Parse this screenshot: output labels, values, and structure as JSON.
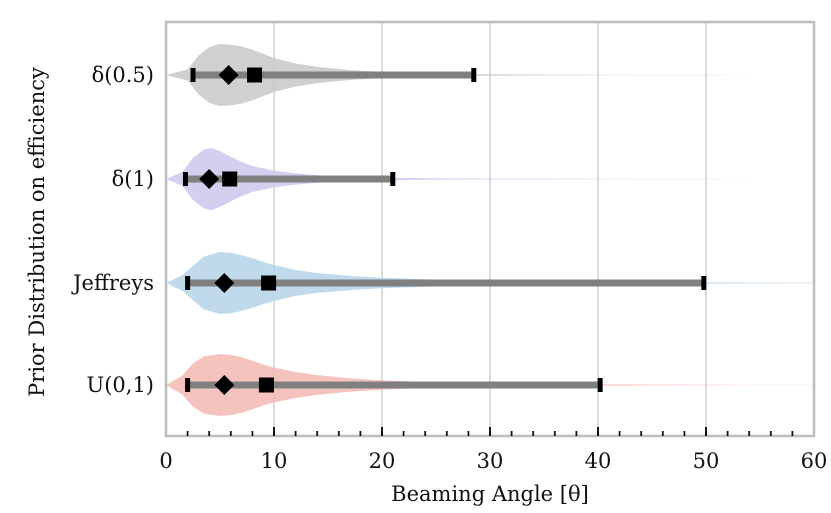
{
  "chart_data": {
    "type": "violin",
    "title": "",
    "xlabel": "Beaming Angle [θ]",
    "ylabel": "Prior Distribution on efficiency",
    "xlim": [
      0,
      60
    ],
    "xticks": [
      0,
      10,
      20,
      30,
      40,
      50,
      60
    ],
    "grid": "vertical",
    "categories": [
      {
        "label": "δ(0.5)",
        "color": "#c8c8c8",
        "mean": 5.8,
        "median": 8.2,
        "interval": [
          2.5,
          28.5
        ],
        "density": [
          [
            0.0,
            0.0
          ],
          [
            2,
            0.18
          ],
          [
            3,
            0.62
          ],
          [
            4,
            0.9
          ],
          [
            5,
            1.0
          ],
          [
            6,
            0.98
          ],
          [
            7,
            0.92
          ],
          [
            8,
            0.82
          ],
          [
            9,
            0.68
          ],
          [
            10,
            0.55
          ],
          [
            12,
            0.37
          ],
          [
            14,
            0.26
          ],
          [
            17,
            0.16
          ],
          [
            20,
            0.1
          ],
          [
            24,
            0.055
          ],
          [
            28,
            0.03
          ],
          [
            33,
            0.015
          ],
          [
            40,
            0.006
          ],
          [
            50,
            0.0025
          ],
          [
            60,
            0.001
          ]
        ]
      },
      {
        "label": "δ(1)",
        "color": "#cdc6ec",
        "mean": 4.0,
        "median": 5.9,
        "interval": [
          1.8,
          21.0
        ],
        "density": [
          [
            0.0,
            0.0
          ],
          [
            1.5,
            0.22
          ],
          [
            2.5,
            0.68
          ],
          [
            3.5,
            0.95
          ],
          [
            4.2,
            1.0
          ],
          [
            5,
            0.9
          ],
          [
            6,
            0.72
          ],
          [
            7,
            0.55
          ],
          [
            8,
            0.42
          ],
          [
            10,
            0.27
          ],
          [
            12,
            0.18
          ],
          [
            14,
            0.12
          ],
          [
            17,
            0.075
          ],
          [
            20,
            0.045
          ],
          [
            24,
            0.025
          ],
          [
            30,
            0.012
          ],
          [
            40,
            0.005
          ],
          [
            50,
            0.002
          ],
          [
            60,
            0.001
          ]
        ]
      },
      {
        "label": "Jeffreys",
        "color": "#b5d4e9",
        "mean": 5.4,
        "median": 9.5,
        "interval": [
          2.0,
          49.8
        ],
        "density": [
          [
            0.0,
            0.0
          ],
          [
            1.5,
            0.25
          ],
          [
            2.5,
            0.55
          ],
          [
            3.5,
            0.85
          ],
          [
            5,
            1.0
          ],
          [
            6,
            0.98
          ],
          [
            7,
            0.9
          ],
          [
            8,
            0.8
          ],
          [
            9,
            0.68
          ],
          [
            10,
            0.58
          ],
          [
            12,
            0.42
          ],
          [
            14,
            0.32
          ],
          [
            17,
            0.23
          ],
          [
            20,
            0.17
          ],
          [
            25,
            0.11
          ],
          [
            30,
            0.075
          ],
          [
            35,
            0.05
          ],
          [
            40,
            0.035
          ],
          [
            45,
            0.025
          ],
          [
            50,
            0.018
          ],
          [
            55,
            0.012
          ],
          [
            60,
            0.008
          ]
        ]
      },
      {
        "label": "U(0,1)",
        "color": "#f2b9b2",
        "mean": 5.4,
        "median": 9.3,
        "interval": [
          2.0,
          40.2
        ],
        "density": [
          [
            0.0,
            0.0
          ],
          [
            1.5,
            0.3
          ],
          [
            2.5,
            0.7
          ],
          [
            3.5,
            0.92
          ],
          [
            5,
            1.0
          ],
          [
            6,
            0.97
          ],
          [
            7,
            0.9
          ],
          [
            8,
            0.78
          ],
          [
            9,
            0.66
          ],
          [
            10,
            0.56
          ],
          [
            12,
            0.42
          ],
          [
            14,
            0.32
          ],
          [
            17,
            0.22
          ],
          [
            20,
            0.15
          ],
          [
            25,
            0.09
          ],
          [
            30,
            0.055
          ],
          [
            35,
            0.035
          ],
          [
            40,
            0.02
          ],
          [
            45,
            0.012
          ],
          [
            50,
            0.007
          ],
          [
            60,
            0.003
          ]
        ]
      }
    ],
    "legend": "none"
  }
}
